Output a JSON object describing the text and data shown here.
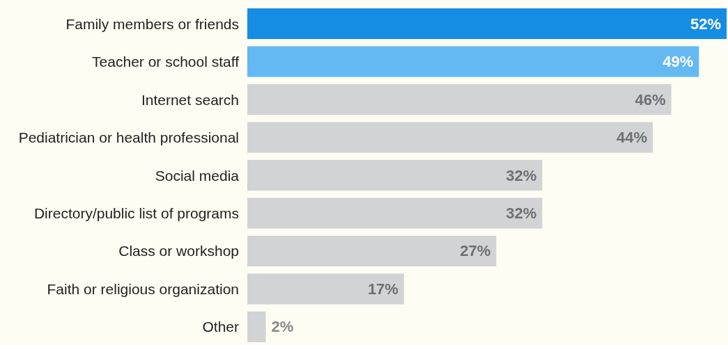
{
  "chart_data": {
    "type": "bar",
    "orientation": "horizontal",
    "categories": [
      "Family members or friends",
      "Teacher or school staff",
      "Internet search",
      "Pediatrician or health professional",
      "Social media",
      "Directory/public list of programs",
      "Class or workshop",
      "Faith or religious organization",
      "Other"
    ],
    "values": [
      52,
      49,
      46,
      44,
      32,
      32,
      27,
      17,
      2
    ],
    "value_labels": [
      "52%",
      "49%",
      "46%",
      "44%",
      "32%",
      "32%",
      "27%",
      "17%",
      "2%"
    ],
    "colors": [
      "#158de3",
      "#64b9f3",
      "#d2d3d5",
      "#d2d3d5",
      "#d2d3d5",
      "#d2d3d5",
      "#d2d3d5",
      "#d2d3d5",
      "#d2d3d5"
    ]
  }
}
